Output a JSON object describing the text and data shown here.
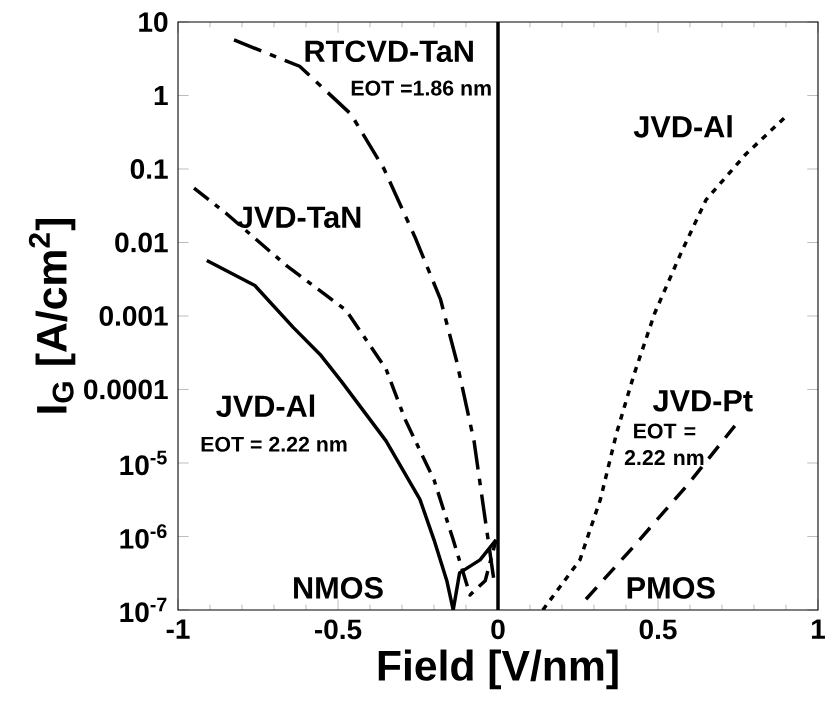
{
  "chart_data": {
    "type": "line",
    "xlabel": "Field [V/nm]",
    "ylabel": "I$_{G}$ [A/cm$^{2}$]",
    "log": "y",
    "grid": false,
    "legend": false,
    "marker": "none",
    "xlim": [
      -1,
      1
    ],
    "ylim": [
      1e-07,
      10
    ],
    "xticks": [
      -1,
      -0.5,
      0,
      0.5,
      1
    ],
    "yticks": [
      10,
      1,
      0.1,
      0.01,
      0.001,
      0.0001,
      {
        "value": 1e-05,
        "label": "10$^{-5}$"
      },
      {
        "value": 1e-06,
        "label": "10$^{-6}$"
      },
      {
        "value": 1e-07,
        "label": "10$^{-7}$"
      }
    ],
    "series": [
      {
        "name": "RTCVD-TaN",
        "color": "#000000",
        "line_style": "longdashdot",
        "x": [
          -0.825,
          -0.62,
          -0.46,
          -0.356,
          -0.26,
          -0.18,
          -0.13,
          -0.075,
          -0.04,
          -0.0125
        ],
        "values": [
          5.7,
          2.5,
          0.56,
          0.1,
          0.012,
          0.0017,
          0.00025,
          2e-05,
          1.7e-06,
          2.5e-07
        ]
      },
      {
        "name": "JVD-TaN",
        "color": "#000000",
        "line_style": "dashdot",
        "x": [
          -0.95,
          -0.85,
          -0.66,
          -0.475,
          -0.35,
          -0.29,
          -0.2,
          -0.14,
          -0.0875,
          -0.04,
          -0.006
        ],
        "values": [
          0.055,
          0.025,
          0.0048,
          0.0012,
          0.00019,
          3.9e-05,
          5.9e-06,
          9e-07,
          1.6e-07,
          2.5e-07,
          9e-07
        ]
      },
      {
        "name": "JVD-Al",
        "color": "#000000",
        "line_style": "solid",
        "x": [
          -0.91,
          -0.76,
          -0.64,
          -0.556,
          -0.49,
          -0.35,
          -0.244,
          -0.2,
          -0.16,
          -0.14,
          -0.12,
          -0.056,
          -0.006
        ],
        "values": [
          0.0057,
          0.0026,
          0.0007,
          0.0003,
          0.00013,
          2e-05,
          3.2e-06,
          9e-07,
          2.5e-07,
          1e-07,
          3.2e-07,
          4.8e-07,
          9e-07
        ]
      },
      {
        "name": "JVD-Al",
        "color": "#000000",
        "line_style": "dotted",
        "x": [
          0.14,
          0.256,
          0.32,
          0.37,
          0.425,
          0.49,
          0.57,
          0.65,
          0.775,
          0.9
        ],
        "values": [
          1e-07,
          4.8e-07,
          3.2e-06,
          2.5e-05,
          0.00016,
          0.0011,
          0.0069,
          0.038,
          0.16,
          0.52
        ]
      },
      {
        "name": "JVD-Pt",
        "color": "#000000",
        "line_style": "dashed",
        "x": [
          0.275,
          0.425,
          0.59,
          0.74
        ],
        "values": [
          1.4e-07,
          7.4e-07,
          4.9e-06,
          3.2e-05
        ]
      }
    ],
    "ref_lines": [
      {
        "axis": "x",
        "value": 0,
        "color": "#000000"
      }
    ],
    "annotations": [
      "EOT =1.86 nm",
      "EOT = 2.22 nm",
      "EOT = 2.22 nm",
      "NMOS",
      "PMOS"
    ]
  }
}
